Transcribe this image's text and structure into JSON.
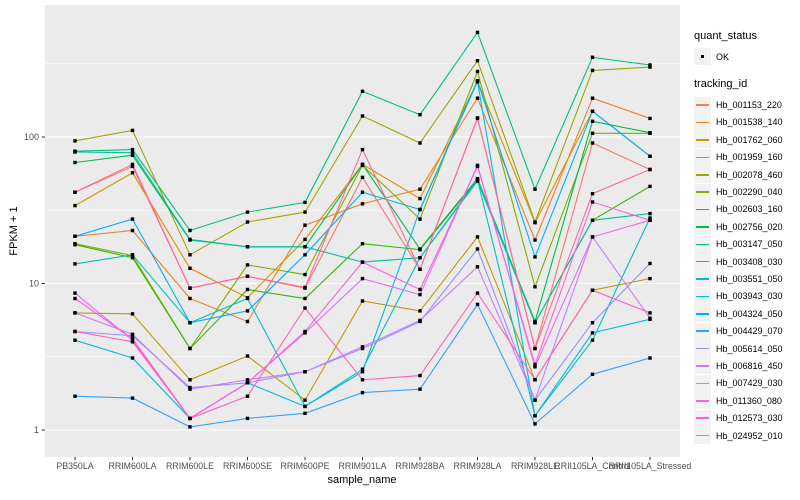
{
  "figure": {
    "xlabel": "sample_name",
    "ylabel": "FPKM + 1",
    "legend": {
      "quant_status_title": "quant_status",
      "quant_status_ok_label": "OK",
      "tracking_title": "tracking_id"
    }
  },
  "chart_data": {
    "type": "line",
    "title": "",
    "xlabel": "sample_name",
    "ylabel": "FPKM + 1",
    "y_scale": "log10",
    "ylim": [
      0.66,
      800
    ],
    "y_major_ticks": [
      1,
      10,
      100
    ],
    "y_major_tick_labels": [
      "1",
      "10",
      "100"
    ],
    "y_minor_ticks": [
      3.162,
      31.62,
      316.2
    ],
    "grid": "on",
    "panel_bg": "#EBEBEB",
    "grid_color": "#FFFFFF",
    "axis_text_color": "#4D4D4D",
    "tick_color": "#333333",
    "point_color": "#000000",
    "legend_position": "right",
    "categories": [
      "PB350LA",
      "RRIM600LA",
      "RRIM600LE",
      "RRIM600SE",
      "RRIM600PE",
      "RRIM901LA",
      "RRIM928BA",
      "RRIM928LA",
      "RRIM928LE",
      "RRII105LA_Control",
      "RRII105LA_Stressed"
    ],
    "series": [
      {
        "name": "Hb_001153_220",
        "color": "#F8766D",
        "values": [
          42,
          63,
          9.3,
          11.2,
          9.3,
          53,
          12.5,
          134,
          3.6,
          91,
          60
        ]
      },
      {
        "name": "Hb_001538_140",
        "color": "#EA8331",
        "values": [
          21,
          23,
          7.9,
          5.5,
          25,
          35,
          44,
          184,
          19.8,
          184,
          134
        ]
      },
      {
        "name": "Hb_001762_060",
        "color": "#D89000",
        "values": [
          34,
          57,
          12.7,
          8.0,
          20,
          65,
          38,
          240,
          26,
          150,
          74
        ]
      },
      {
        "name": "Hb_001959_160",
        "color": "#C09B00",
        "values": [
          6.3,
          6.2,
          2.2,
          3.2,
          1.6,
          7.6,
          6.5,
          20.8,
          2.2,
          9.0,
          10.8
        ]
      },
      {
        "name": "Hb_002078_460",
        "color": "#A3A500",
        "values": [
          94,
          111,
          15.7,
          26.3,
          30.7,
          139,
          91,
          332,
          26.3,
          285,
          300
        ]
      },
      {
        "name": "Hb_002290_040",
        "color": "#7CAE00",
        "values": [
          18.7,
          15.5,
          3.6,
          13.4,
          11.5,
          64,
          27.5,
          280,
          9.5,
          106,
          106
        ]
      },
      {
        "name": "Hb_002603_160",
        "color": "#39B600",
        "values": [
          18.4,
          15.0,
          3.6,
          9.1,
          7.9,
          18.7,
          17.0,
          51,
          5.4,
          27,
          46
        ]
      },
      {
        "name": "Hb_002756_020",
        "color": "#00BB4E",
        "values": [
          67,
          75,
          19.8,
          17.8,
          17.8,
          65,
          17.2,
          52,
          5.5,
          128,
          107
        ]
      },
      {
        "name": "Hb_003147_050",
        "color": "#00BF7D",
        "values": [
          80,
          82,
          23,
          30.7,
          35.8,
          205,
          142,
          518,
          44,
          350,
          310
        ]
      },
      {
        "name": "Hb_003408_030",
        "color": "#00C1A3",
        "values": [
          79,
          78,
          20,
          17.8,
          17.8,
          14,
          15,
          50,
          5.4,
          27,
          30
        ]
      },
      {
        "name": "Hb_003551_050",
        "color": "#00BFC4",
        "values": [
          13.6,
          15.7,
          5.4,
          7.9,
          1.45,
          2.6,
          15,
          51,
          1.25,
          4.1,
          28
        ]
      },
      {
        "name": "Hb_003943_030",
        "color": "#00BAE0",
        "values": [
          4.1,
          3.1,
          1.2,
          2.1,
          1.45,
          2.5,
          32,
          238,
          1.25,
          4.6,
          5.7
        ]
      },
      {
        "name": "Hb_004324_050",
        "color": "#00B0F6",
        "values": [
          21,
          27.5,
          5.4,
          6.5,
          15.7,
          42,
          32,
          242,
          15.2,
          150,
          74
        ]
      },
      {
        "name": "Hb_004429_070",
        "color": "#35A2FF",
        "values": [
          1.7,
          1.65,
          1.05,
          1.2,
          1.3,
          1.8,
          1.9,
          7.2,
          1.1,
          2.4,
          3.1
        ]
      },
      {
        "name": "Hb_005614_050",
        "color": "#9590FF",
        "values": [
          4.7,
          4.4,
          1.95,
          2.1,
          2.5,
          3.6,
          5.5,
          17.2,
          1.6,
          5.4,
          13.7
        ]
      },
      {
        "name": "Hb_006816_450",
        "color": "#C77CFF",
        "values": [
          6.3,
          4.5,
          1.9,
          2.2,
          2.5,
          3.7,
          5.6,
          13,
          1.6,
          20.8,
          5.8
        ]
      },
      {
        "name": "Hb_007429_030",
        "color": "#E76BF3",
        "values": [
          8.6,
          4.1,
          1.2,
          2.1,
          4.6,
          10.8,
          8.4,
          64,
          2.7,
          20.8,
          27
        ]
      },
      {
        "name": "Hb_011360_080",
        "color": "#FA62DB",
        "values": [
          7.9,
          4.2,
          1.2,
          2.1,
          4.7,
          14,
          9.1,
          63,
          2.8,
          36,
          27
        ]
      },
      {
        "name": "Hb_012573_030",
        "color": "#FF62BC",
        "values": [
          4.7,
          4.0,
          1.2,
          1.7,
          6.8,
          2.2,
          2.35,
          8.6,
          2.2,
          9.0,
          6.3
        ]
      },
      {
        "name": "Hb_024952_010",
        "color": "#FF6A98",
        "values": [
          42,
          65,
          9.3,
          11.2,
          9.4,
          82,
          12.5,
          135,
          3.6,
          41,
          60
        ]
      }
    ]
  }
}
